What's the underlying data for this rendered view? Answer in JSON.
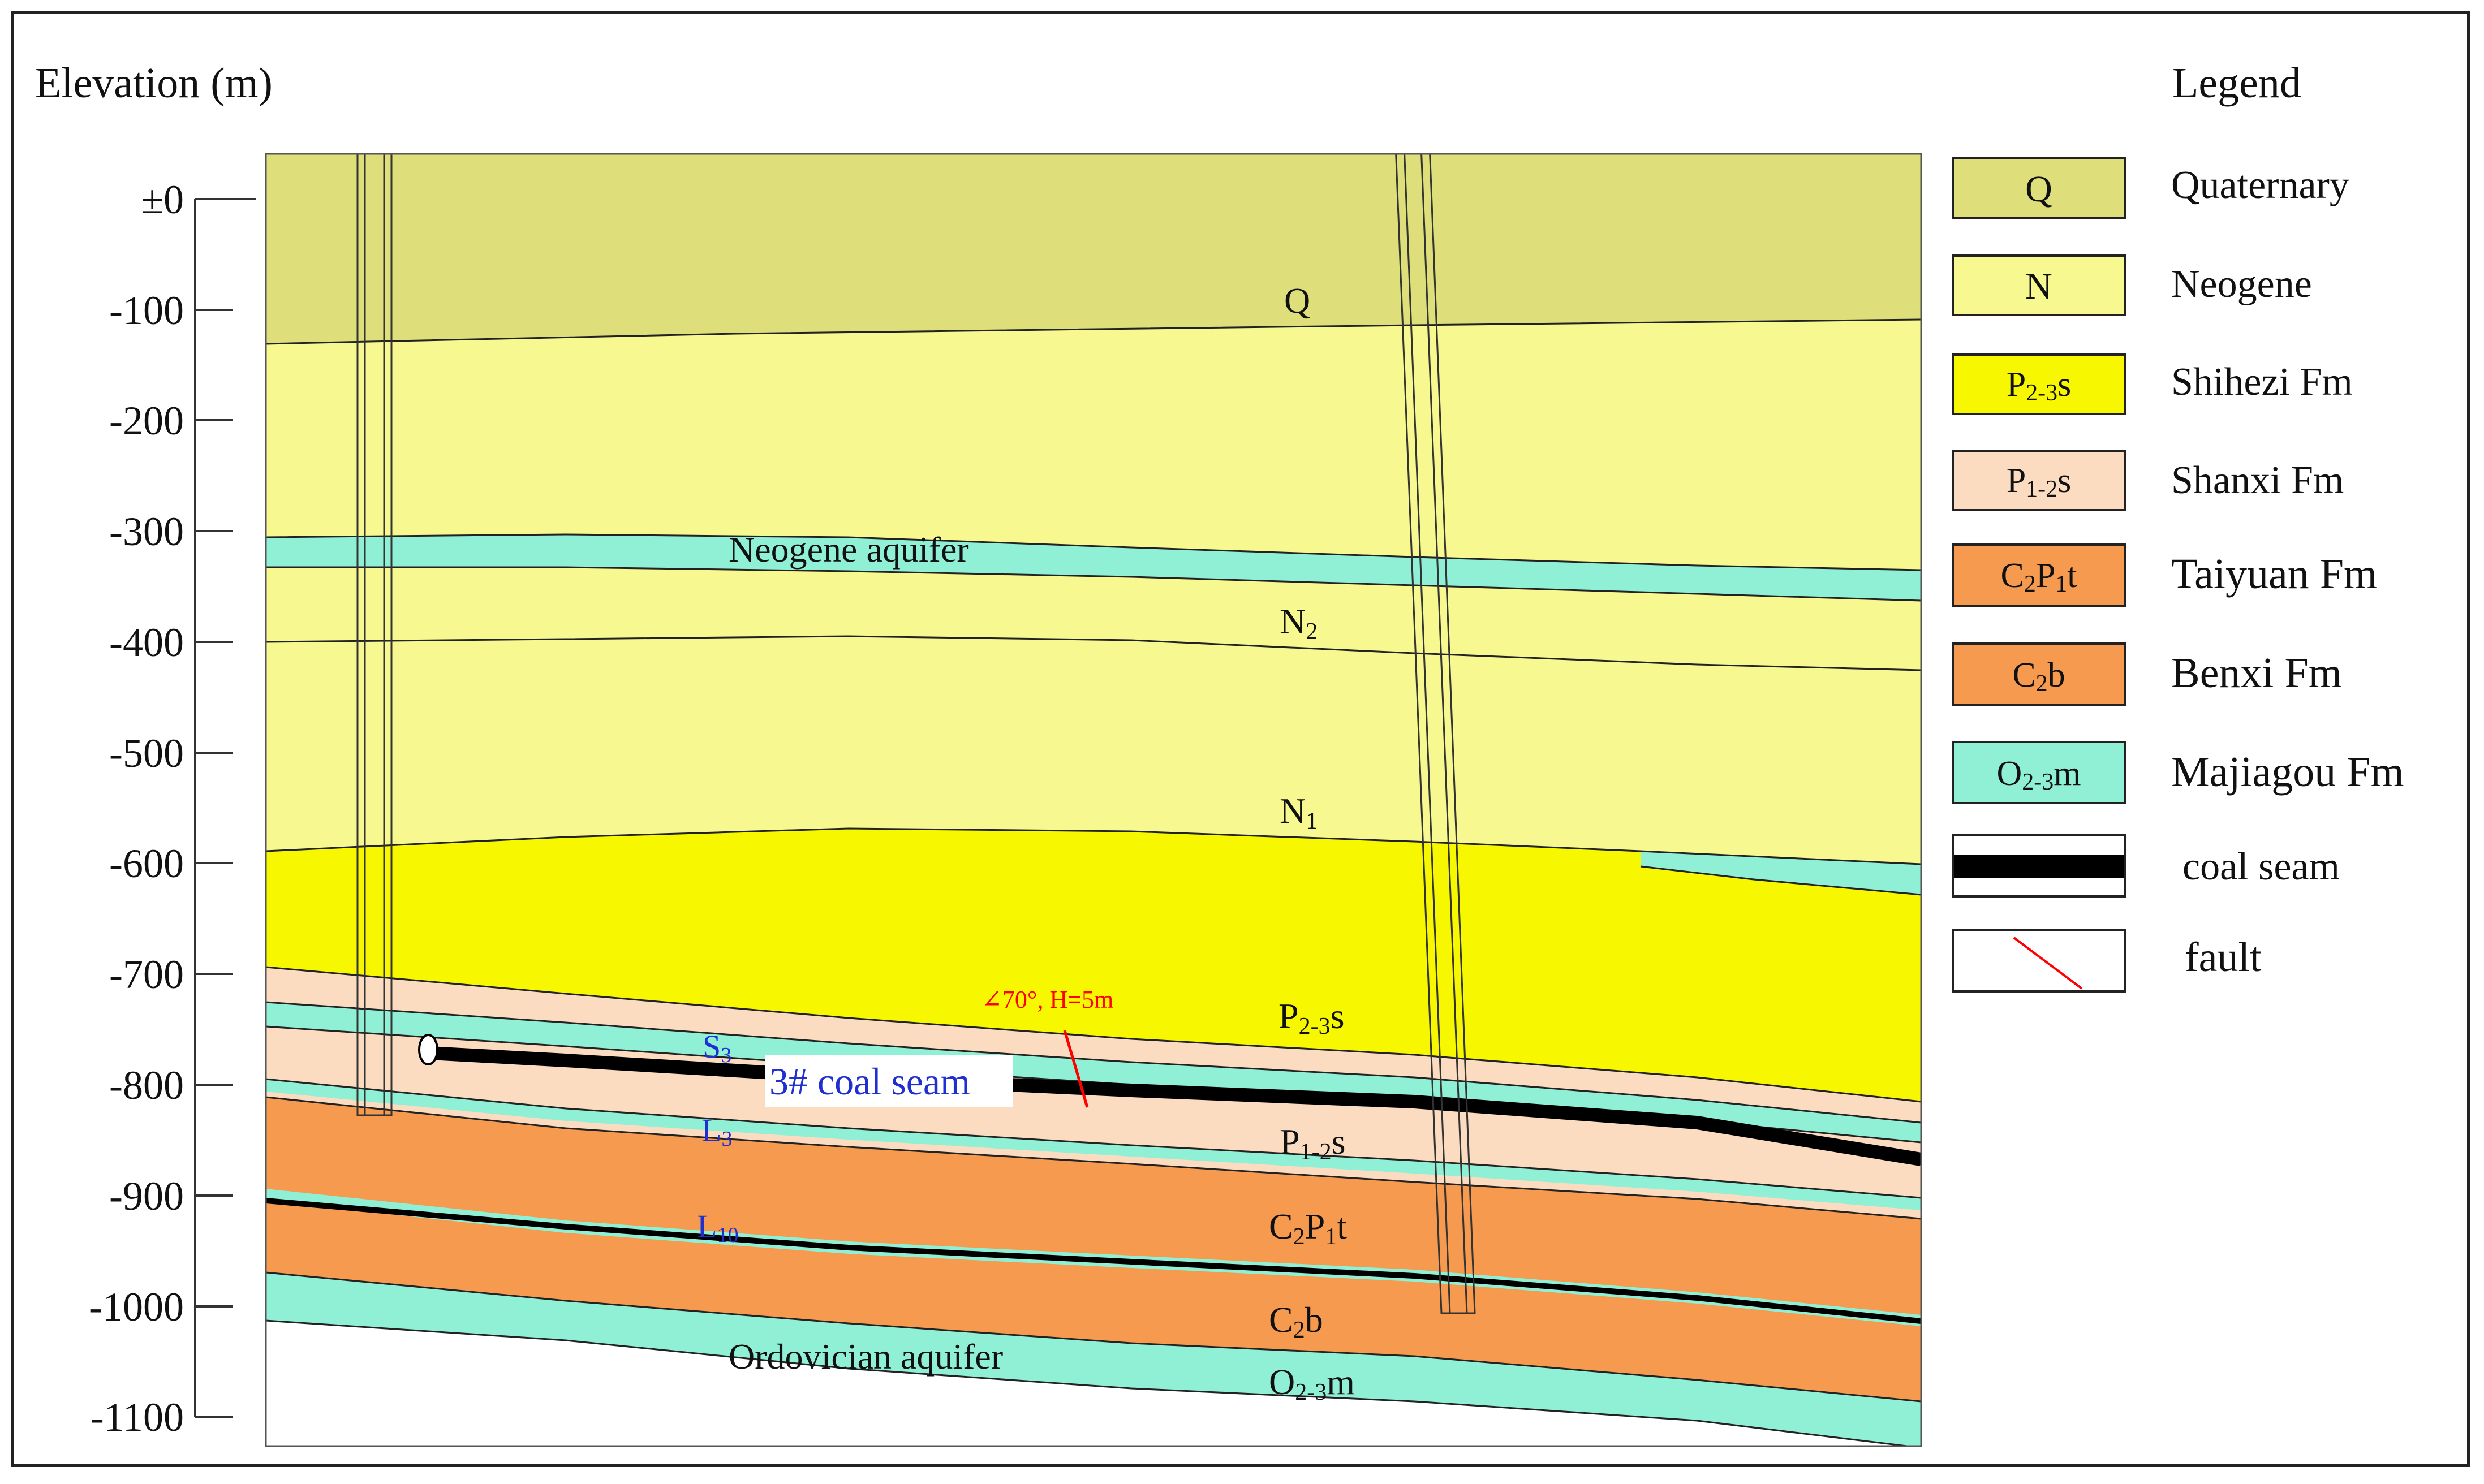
{
  "axis": {
    "title": "Elevation (m)",
    "ticks": [
      "±0",
      "-100",
      "-200",
      "-300",
      "-400",
      "-500",
      "-600",
      "-700",
      "-800",
      "-900",
      "-1000",
      "-1100"
    ]
  },
  "section_labels": {
    "q": "Q",
    "neogene_aquifer": "Neogene aquifer",
    "n2_main": "N",
    "n2_sub": "2",
    "n1_main": "N",
    "n1_sub": "1",
    "p23s_main": "P",
    "p23s_sub": "2-3",
    "p23s_tail": "s",
    "p12s_main": "P",
    "p12s_sub": "1-2",
    "p12s_tail": "s",
    "c2p1t_a": "C",
    "c2p1t_b": "2",
    "c2p1t_c": "P",
    "c2p1t_d": "1",
    "c2p1t_e": "t",
    "c2b_a": "C",
    "c2b_b": "2",
    "c2b_c": "b",
    "o23m_a": "O",
    "o23m_b": "2-3",
    "o23m_c": "m",
    "ordovician_aquifer": "Ordovician aquifer",
    "coal_seam": "3# coal seam",
    "s3_main": "S",
    "s3_sub": "3",
    "l3_main": "L",
    "l3_sub": "3",
    "l10_main": "L",
    "l10_sub": "10",
    "fault": "∠70°, H=5m"
  },
  "legend": {
    "title": "Legend",
    "items": [
      {
        "symbol": "Q",
        "name": "Quaternary",
        "color": "#dede7a"
      },
      {
        "symbol": "N",
        "name": "Neogene",
        "color": "#f8f890"
      },
      {
        "symbol_main": "P",
        "symbol_sub": "2-3",
        "symbol_tail": "s",
        "name": "Shihezi Fm",
        "color": "#f7f700"
      },
      {
        "symbol_main": "P",
        "symbol_sub": "1-2",
        "symbol_tail": "s",
        "name": "Shanxi Fm",
        "color": "#fbdcc0"
      },
      {
        "symbol_a": "C",
        "symbol_b": "2",
        "symbol_c": "P",
        "symbol_d": "1",
        "symbol_e": "t",
        "name": "Taiyuan Fm",
        "color": "#f59a4e"
      },
      {
        "symbol_a": "C",
        "symbol_b": "2",
        "symbol_c": "b",
        "name": "Benxi Fm",
        "color": "#f59a4e"
      },
      {
        "symbol_a": "O",
        "symbol_b": "2-3",
        "symbol_c": "m",
        "name": "Majiagou Fm",
        "color": "#8ff0d6"
      },
      {
        "name": "coal seam"
      },
      {
        "name": "fault"
      }
    ]
  },
  "colors": {
    "quaternary": "#dede7a",
    "neogene": "#f8f890",
    "shihezi": "#f7f700",
    "shanxi": "#fbdcc0",
    "taiyuan": "#f59a4e",
    "majiagou": "#8ff0d6",
    "aquifer": "#8ff0d6",
    "coal": "#000000",
    "fault": "#ff0000",
    "marker_label": "#1f2fd0"
  }
}
